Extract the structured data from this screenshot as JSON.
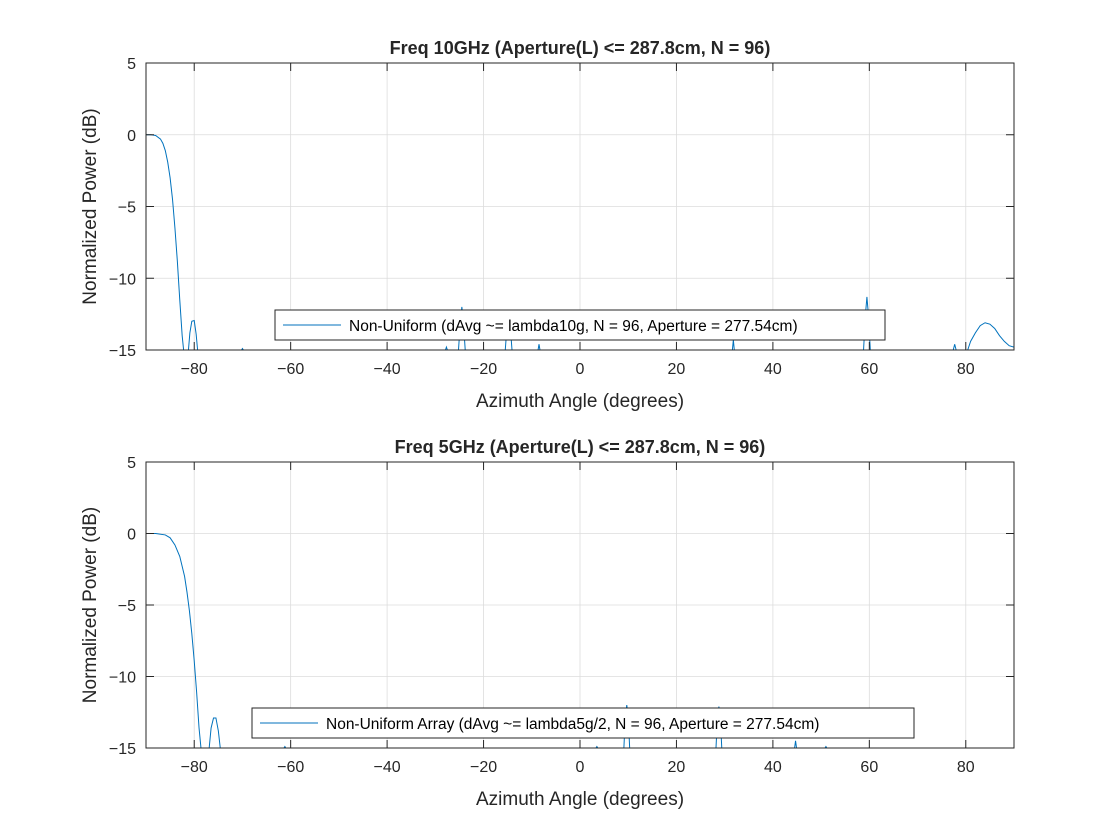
{
  "chart_data": [
    {
      "type": "line",
      "title": "Freq 10GHz (Aperture(L) <= 287.8cm, N = 96)",
      "xlabel": "Azimuth Angle (degrees)",
      "ylabel": "Normalized Power (dB)",
      "xlim": [
        -90,
        90
      ],
      "ylim": [
        -15,
        5
      ],
      "xticks": [
        -80,
        -60,
        -40,
        -20,
        0,
        20,
        40,
        60,
        80
      ],
      "yticks": [
        -15,
        -10,
        -5,
        0,
        5
      ],
      "grid": true,
      "legend_location": "south",
      "series": [
        {
          "name": "Non-Uniform (dAvg ~= lambda10g, N = 96, Aperture = 277.54cm)",
          "color": "#0072bd",
          "segments": [
            {
              "x": [
                -90,
                -89,
                -88,
                -87,
                -86.5,
                -86,
                -85.5,
                -85,
                -84.5,
                -84,
                -83.5,
                -83,
                -82.5,
                -82.2
              ],
              "y": [
                0,
                0,
                -0.05,
                -0.3,
                -0.6,
                -1.1,
                -1.9,
                -3.0,
                -4.5,
                -6.5,
                -8.8,
                -11.5,
                -14.0,
                -15
              ]
            },
            {
              "x": [
                -81.2,
                -80.9,
                -80.5,
                -80.0,
                -79.6,
                -79.3
              ],
              "y": [
                -15,
                -13.8,
                -13.0,
                -12.95,
                -13.9,
                -15
              ]
            },
            {
              "x": [
                -70.2,
                -70.0,
                -69.8
              ],
              "y": [
                -15,
                -14.9,
                -15
              ]
            },
            {
              "x": [
                -27.9,
                -27.7,
                -27.5
              ],
              "y": [
                -15,
                -14.8,
                -15
              ]
            },
            {
              "x": [
                -25.2,
                -24.8,
                -24.5,
                -24.2,
                -23.8
              ],
              "y": [
                -15,
                -13.0,
                -12.0,
                -13.0,
                -15
              ]
            },
            {
              "x": [
                -15.5,
                -15.1,
                -14.8,
                -14.5,
                -14.1
              ],
              "y": [
                -15,
                -13.2,
                -12.2,
                -13.2,
                -15
              ]
            },
            {
              "x": [
                -8.7,
                -8.5,
                -8.3
              ],
              "y": [
                -15,
                -14.6,
                -15
              ]
            },
            {
              "x": [
                31.6,
                31.8,
                32.0
              ],
              "y": [
                -15,
                -14.3,
                -15
              ]
            },
            {
              "x": [
                58.8,
                59.2,
                59.5,
                59.8,
                60.2
              ],
              "y": [
                -15,
                -12.5,
                -11.3,
                -12.5,
                -15
              ]
            },
            {
              "x": [
                77.4,
                77.7,
                78.0
              ],
              "y": [
                -15,
                -14.6,
                -15
              ]
            },
            {
              "x": [
                80.4,
                81.0,
                82.0,
                83.0,
                84.0,
                85.0,
                86.0,
                87.0,
                88.0,
                89.0,
                90.0
              ],
              "y": [
                -15,
                -14.4,
                -13.8,
                -13.3,
                -13.1,
                -13.2,
                -13.5,
                -14.0,
                -14.4,
                -14.7,
                -14.8
              ]
            }
          ]
        }
      ]
    },
    {
      "type": "line",
      "title": "Freq 5GHz (Aperture(L) <= 287.8cm, N = 96)",
      "xlabel": "Azimuth Angle (degrees)",
      "ylabel": "Normalized Power (dB)",
      "xlim": [
        -90,
        90
      ],
      "ylim": [
        -15,
        5
      ],
      "xticks": [
        -80,
        -60,
        -40,
        -20,
        0,
        20,
        40,
        60,
        80
      ],
      "yticks": [
        -15,
        -10,
        -5,
        0,
        5
      ],
      "grid": true,
      "legend_location": "south",
      "series": [
        {
          "name": "Non-Uniform Array (dAvg ~= lambda5g/2, N = 96, Aperture = 277.54cm)",
          "color": "#0072bd",
          "segments": [
            {
              "x": [
                -90,
                -88,
                -86,
                -85,
                -84,
                -83,
                -82,
                -81.5,
                -81,
                -80.5,
                -80,
                -79.5,
                -79,
                -78.6
              ],
              "y": [
                0,
                0,
                -0.1,
                -0.3,
                -0.8,
                -1.6,
                -3.0,
                -4.1,
                -5.4,
                -7.0,
                -8.9,
                -11.1,
                -13.6,
                -15
              ]
            },
            {
              "x": [
                -76.9,
                -76.5,
                -76.0,
                -75.5,
                -75.0,
                -74.6
              ],
              "y": [
                -15,
                -13.6,
                -12.9,
                -12.9,
                -13.8,
                -15
              ]
            },
            {
              "x": [
                -61.4,
                -61.2,
                -61.0
              ],
              "y": [
                -15,
                -14.9,
                -15
              ]
            },
            {
              "x": [
                3.3,
                3.5,
                3.7
              ],
              "y": [
                -15,
                -14.9,
                -15
              ]
            },
            {
              "x": [
                9.1,
                9.4,
                9.7,
                10.0,
                10.3
              ],
              "y": [
                -15,
                -12.8,
                -12.0,
                -12.8,
                -15
              ]
            },
            {
              "x": [
                28.2,
                28.5,
                28.8,
                29.1,
                29.4
              ],
              "y": [
                -15,
                -12.9,
                -12.1,
                -12.9,
                -15
              ]
            },
            {
              "x": [
                44.5,
                44.7,
                44.9
              ],
              "y": [
                -15,
                -14.5,
                -15
              ]
            },
            {
              "x": [
                50.8,
                51.0,
                51.2
              ],
              "y": [
                -15,
                -14.9,
                -15
              ]
            }
          ]
        }
      ]
    }
  ]
}
